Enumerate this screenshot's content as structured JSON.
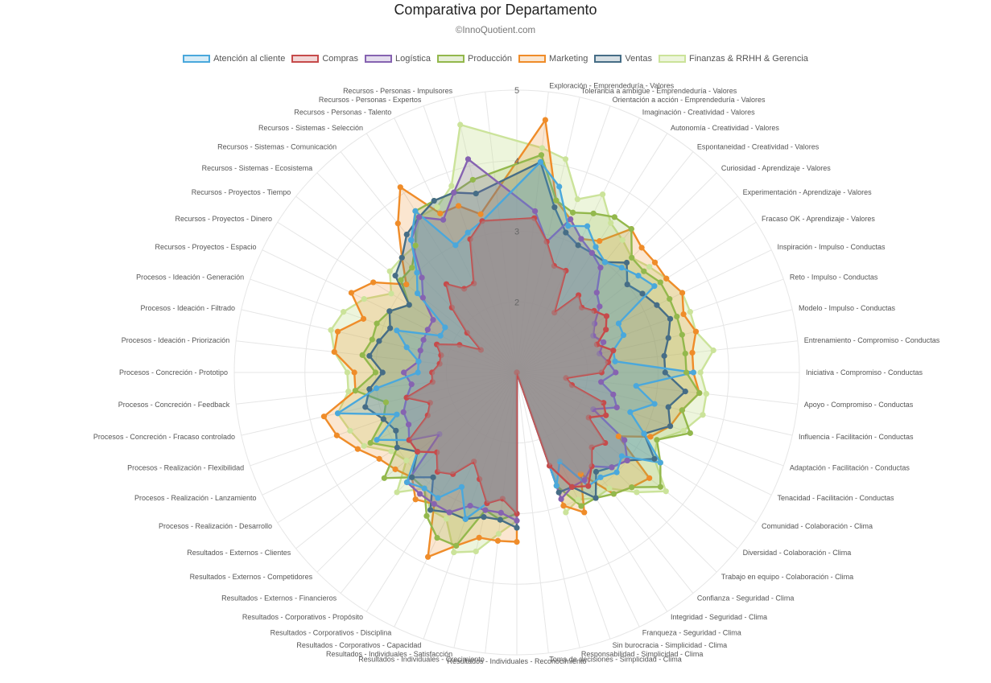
{
  "chart_data": {
    "type": "radar",
    "title": "Comparativa por Departamento",
    "subtitle": "©InnoQuotient.com",
    "r_ticks": [
      "2",
      "3",
      "4",
      "5"
    ],
    "r_range": [
      1,
      5
    ],
    "legend_position": "top",
    "gridlines": true,
    "categories": [
      "Exploración - Emprendeduría - Valores",
      "Tolerancia a ambigüe - Emprendeduría - Valores",
      "Orientación a acción  - Emprendeduría - Valores",
      "Imaginación - Creatividad - Valores",
      "Autonomía - Creatividad - Valores",
      "Espontaneidad - Creatividad - Valores",
      "Curiosidad - Aprendizaje - Valores",
      "Experimentación - Aprendizaje - Valores",
      "Fracaso OK - Aprendizaje - Valores",
      "Inspiración - Impulso - Conductas",
      "Reto - Impulso - Conductas",
      "Modelo - Impulso - Conductas",
      "Entrenamiento - Compromiso - Conductas",
      "Iniciativa - Compromiso - Conductas",
      "Apoyo - Compromiso - Conductas",
      "Influencia - Facilitación - Conductas",
      "Adaptación - Facilitación - Conductas",
      "Tenacidad - Facilitación - Conductas",
      "Comunidad - Colaboración - Clima",
      "Diversidad - Colaboración - Clima",
      "Trabajo en equipo - Colaboración - Clima",
      "Confianza - Seguridad - Clima",
      "Integridad - Seguridad - Clima",
      "Franqueza - Seguridad - Clima",
      "Sin burocracia - Simplicidad - Clima",
      "Responsabilidad - Simplicidad - Clima",
      "Toma de decisiones - Simplicidad - Clima",
      "Resultados - Individuales - Reconocimiento",
      "Resultados - Individuales - Crecimiento",
      "Resultados - Individuales - Satisfacción",
      "Resultados - Corporativos - Capacidad",
      "Resultados - Corporativos - Disciplina",
      "Resultados - Corporativos - Propósito",
      "Resultados - Externos - Financieros",
      "Resultados - Externos - Competidores",
      "Resultados - Externos - Clientes",
      "Procesos - Realización - Desarrollo",
      "Procesos - Realización - Lanzamiento",
      "Procesos - Realización - Flexibilidad",
      "Procesos - Concreción - Fracaso controlado",
      "Procesos - Concreción - Feedback",
      "Procesos - Concreción - Prototipo",
      "Procesos - Ideación - Priorización",
      "Procesos - Ideación - Filtrado",
      "Procesos - Ideación - Generación",
      "Recursos - Proyectos - Espacio",
      "Recursos - Proyectos - Dinero",
      "Recursos - Proyectos - Tiempo",
      "Recursos - Sistemas - Ecosistema",
      "Recursos - Sistemas - Comunicación",
      "Recursos - Sistemas - Selección",
      "Recursos - Personas - Talento",
      "Recursos - Personas - Expertos",
      "Recursos - Personas - Impulsores"
    ],
    "series": [
      {
        "name": "Atención al cliente",
        "border": "#4aa8dc",
        "fill": "rgba(74,168,220,0.22)",
        "values": [
          4.0,
          3.7,
          3.2,
          3.3,
          3.1,
          3.0,
          3.1,
          3.2,
          3.3,
          2.6,
          2.6,
          2.4,
          2.4,
          3.5,
          2.7,
          3.0,
          2.7,
          3.0,
          3.4,
          2.9,
          3.0,
          2.9,
          2.9,
          2.4,
          2.7,
          1.0,
          1.0,
          3.0,
          2.8,
          2.9,
          3.2,
          2.8,
          3.1,
          3.1,
          3.2,
          2.8,
          2.8,
          3.2,
          2.8,
          3.6,
          3.0,
          2.4,
          2.4,
          2.6,
          2.8,
          2.2,
          2.2,
          2.8,
          3.0,
          3.4,
          3.7,
          3.0,
          3.1,
          3.2
        ]
      },
      {
        "name": "Compras",
        "border": "#c64b4b",
        "fill": "rgba(198,75,75,0.22)",
        "values": [
          3.2,
          2.9,
          2.6,
          2.6,
          2.0,
          2.4,
          2.3,
          2.4,
          2.5,
          2.4,
          2.2,
          2.4,
          2.3,
          2.2,
          1.7,
          1.8,
          2.3,
          2.4,
          2.2,
          2.6,
          2.5,
          2.7,
          2.9,
          2.8,
          2.4,
          1.0,
          1.0,
          3.0,
          2.8,
          2.9,
          2.6,
          2.4,
          2.7,
          2.8,
          2.6,
          2.8,
          2.8,
          2.4,
          2.3,
          2.6,
          2.2,
          2.2,
          2.1,
          2.1,
          2.2,
          1.9,
          1.6,
          1.9,
          2.3,
          2.6,
          2.4,
          2.4,
          3.0,
          3.2
        ]
      },
      {
        "name": "Logística",
        "border": "#8663b1",
        "fill": "rgba(134,99,177,0.22)",
        "values": [
          3.3,
          2.9,
          3.3,
          3.1,
          3.0,
          2.9,
          2.6,
          2.5,
          2.3,
          2.2,
          2.3,
          2.2,
          2.3,
          2.4,
          2.2,
          2.4,
          2.5,
          2.2,
          2.8,
          3.0,
          2.9,
          2.7,
          2.8,
          2.8,
          2.9,
          1.0,
          1.0,
          3.1,
          3.0,
          3.0,
          3.0,
          3.2,
          3.2,
          3.2,
          3.2,
          2.4,
          2.8,
          2.7,
          2.7,
          2.6,
          2.5,
          2.6,
          2.4,
          2.4,
          2.4,
          2.4,
          2.4,
          2.7,
          2.9,
          3.4,
          3.6,
          3.4,
          3.7,
          4.1
        ]
      },
      {
        "name": "Producción",
        "border": "#93b84c",
        "fill": "rgba(147,184,76,0.22)",
        "values": [
          4.1,
          3.5,
          3.4,
          3.5,
          3.6,
          3.6,
          3.3,
          3.3,
          3.4,
          3.4,
          3.4,
          3.4,
          3.4,
          3.4,
          3.6,
          3.4,
          3.6,
          3.2,
          3.4,
          3.6,
          3.3,
          3.2,
          3.1,
          3.1,
          2.7,
          1.0,
          1.0,
          3.0,
          3.1,
          3.0,
          3.6,
          3.6,
          3.4,
          3.1,
          3.1,
          3.4,
          3.0,
          3.3,
          3.0,
          2.9,
          3.3,
          3.0,
          3.2,
          3.1,
          3.1,
          3.0,
          2.8,
          3.1,
          3.1,
          3.3,
          3.7,
          3.7,
          3.7,
          3.8
        ]
      },
      {
        "name": "Marketing",
        "border": "#ef8c29",
        "fill": "rgba(239,140,41,0.22)",
        "values": [
          4.6,
          3.5,
          3.3,
          3.1,
          3.2,
          3.6,
          3.5,
          3.5,
          3.5,
          3.6,
          3.5,
          3.6,
          3.5,
          3.5,
          3.6,
          3.4,
          3.3,
          3.1,
          2.7,
          3.4,
          3.3,
          3.2,
          2.7,
          3.2,
          3.0,
          1.0,
          1.0,
          3.4,
          3.4,
          3.4,
          3.6,
          3.9,
          3.2,
          3.3,
          3.1,
          3.2,
          3.3,
          3.5,
          3.7,
          3.8,
          3.3,
          3.3,
          3.6,
          3.6,
          3.3,
          3.6,
          3.4,
          3.0,
          3.3,
          3.7,
          4.1,
          3.5,
          3.5,
          3.3
        ]
      },
      {
        "name": "Ventas",
        "border": "#466d86",
        "fill": "rgba(70,109,134,0.22)",
        "values": [
          4.0,
          3.4,
          3.1,
          3.0,
          3.0,
          3.0,
          3.2,
          3.0,
          3.1,
          3.2,
          3.3,
          3.2,
          3.1,
          3.1,
          3.4,
          3.2,
          3.3,
          3.0,
          3.3,
          3.0,
          2.9,
          2.8,
          3.1,
          2.8,
          2.8,
          1.0,
          1.0,
          3.2,
          3.1,
          3.1,
          3.2,
          3.2,
          3.3,
          2.9,
          3.1,
          2.8,
          3.0,
          2.9,
          3.0,
          3.2,
          3.1,
          2.9,
          3.1,
          3.0,
          2.9,
          3.0,
          2.8,
          3.2,
          3.3,
          3.5,
          3.6,
          3.7,
          3.7,
          3.6
        ]
      },
      {
        "name": "Finanzas  & RRHH & Gerencia",
        "border": "#cbe39a",
        "fill": "rgba(203,227,154,0.35)",
        "values": [
          4.2,
          4.1,
          3.6,
          3.8,
          3.5,
          3.4,
          3.3,
          3.4,
          3.5,
          3.6,
          3.6,
          3.6,
          3.8,
          3.6,
          3.7,
          3.7,
          3.5,
          3.2,
          3.3,
          3.7,
          3.4,
          3.1,
          3.1,
          3.0,
          3.1,
          1.0,
          1.0,
          3.1,
          3.3,
          3.6,
          3.7,
          3.3,
          3.3,
          3.1,
          3.4,
          3.0,
          3.1,
          3.4,
          3.5,
          3.6,
          3.4,
          3.4,
          3.6,
          3.7,
          3.6,
          3.4,
          3.1,
          3.3,
          3.3,
          3.3,
          3.6,
          3.6,
          3.8,
          4.6
        ]
      }
    ]
  }
}
